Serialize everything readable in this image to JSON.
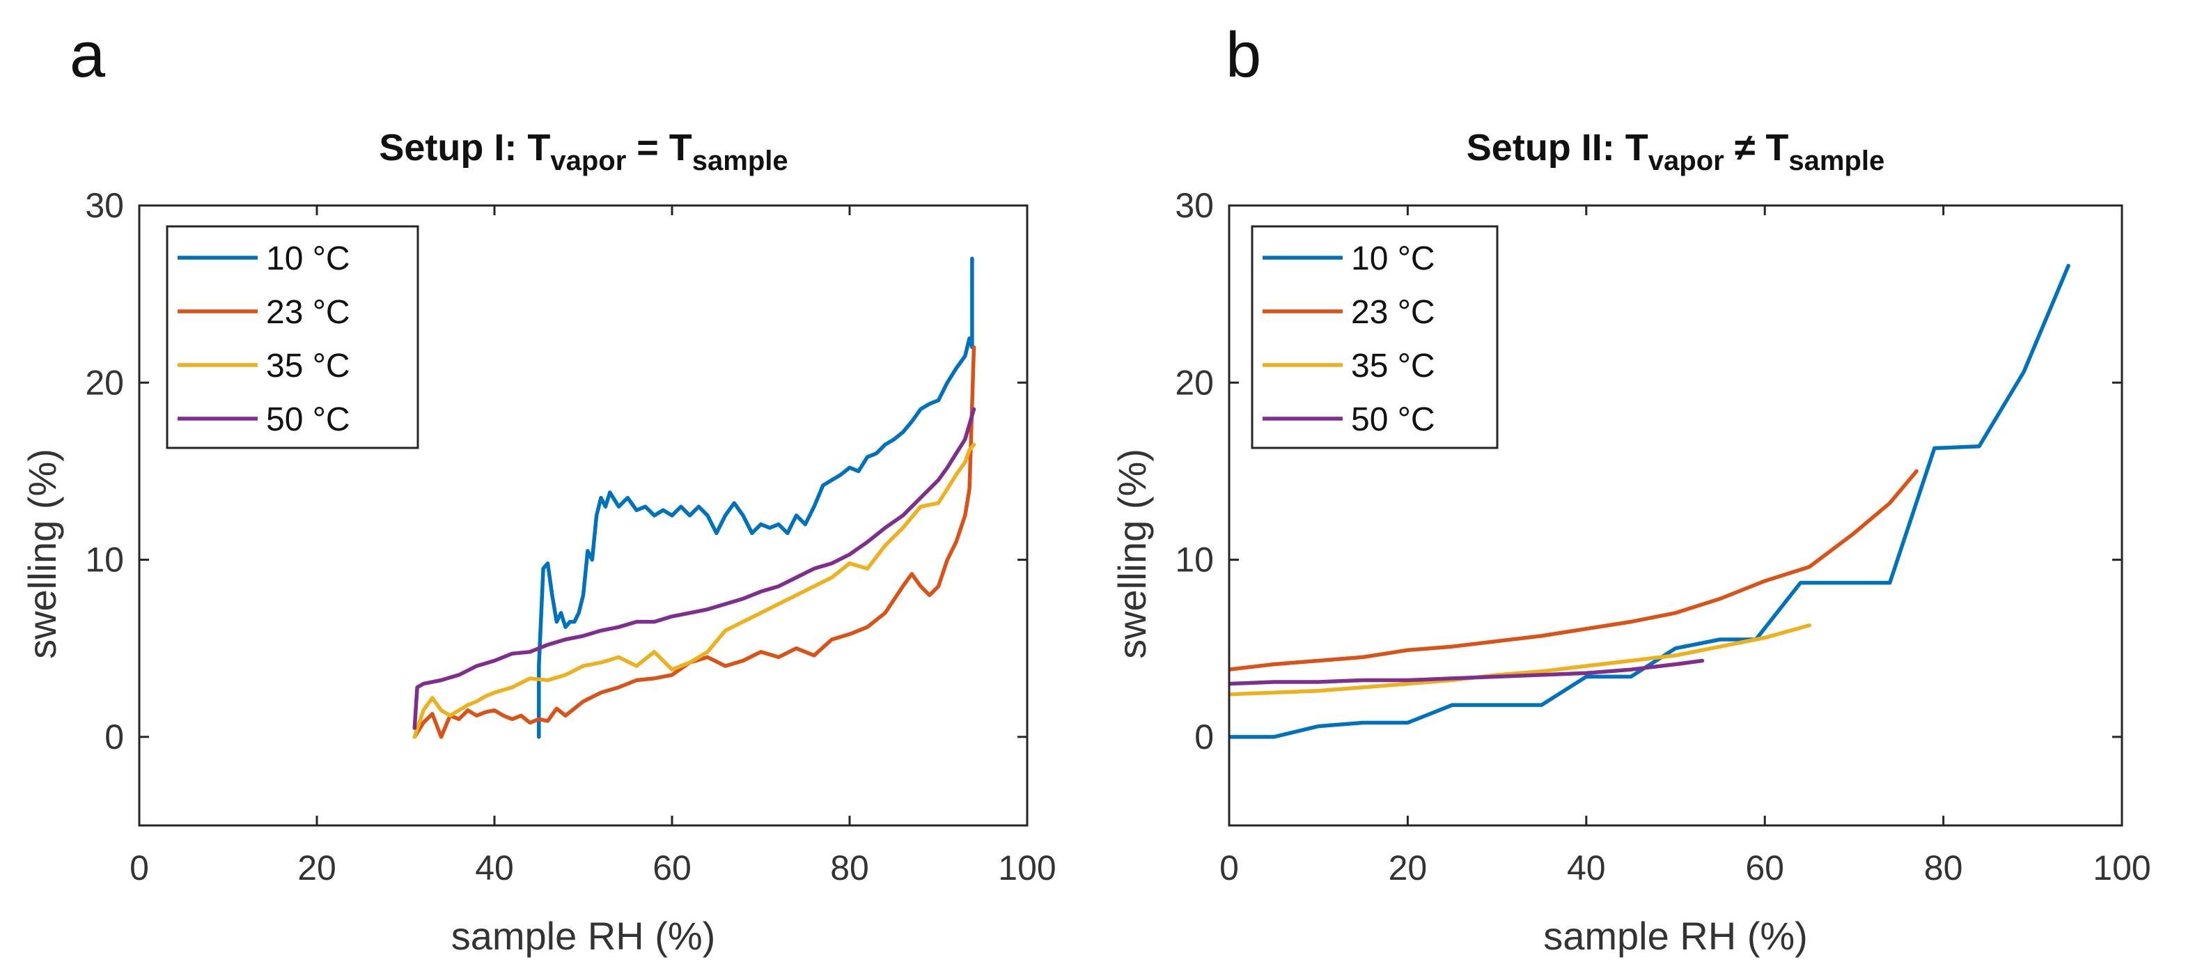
{
  "chart_data": [
    {
      "type": "line",
      "panel_label": "a",
      "title": {
        "main": "Setup I: T",
        "sub1": "vapor",
        "mid": " = T",
        "sub2": "sample"
      },
      "xlabel": "sample RH (%)",
      "ylabel": "swelling (%)",
      "xlim": [
        0,
        100
      ],
      "ylim": [
        -5,
        30
      ],
      "xticks": [
        0,
        20,
        40,
        60,
        80,
        100
      ],
      "yticks": [
        0,
        10,
        20,
        30
      ],
      "legend": "top-left",
      "series": [
        {
          "name": "10 °C",
          "color": "#0072BD",
          "x": [
            45,
            45,
            45.5,
            46,
            46.5,
            47,
            47.5,
            48,
            48.5,
            49,
            49.5,
            50,
            50.5,
            51,
            51.5,
            52,
            52.5,
            53,
            54,
            55,
            56,
            57,
            58,
            59,
            60,
            61,
            62,
            63,
            64,
            65,
            66,
            67,
            68,
            69,
            70,
            71,
            72,
            73,
            74,
            75,
            76,
            77,
            78,
            79,
            80,
            81,
            82,
            83,
            84,
            85,
            86,
            87,
            88,
            89,
            90,
            91,
            92,
            93,
            93.5,
            93.8,
            93.8
          ],
          "y": [
            0,
            4,
            9.5,
            9.8,
            8,
            6.5,
            7,
            6.2,
            6.5,
            6.5,
            7,
            8,
            10.5,
            10,
            12.5,
            13.5,
            13,
            13.8,
            13,
            13.5,
            12.8,
            13,
            12.5,
            12.8,
            12.5,
            13,
            12.5,
            13,
            12.5,
            11.5,
            12.5,
            13.2,
            12.5,
            11.5,
            12,
            11.8,
            12,
            11.5,
            12.5,
            12,
            13,
            14.2,
            14.5,
            14.8,
            15.2,
            15,
            15.8,
            16,
            16.5,
            16.8,
            17.2,
            17.8,
            18.5,
            18.8,
            19,
            20,
            20.8,
            21.5,
            22.5,
            22,
            27
          ]
        },
        {
          "name": "23 °C",
          "color": "#D95319",
          "x": [
            31,
            32,
            33,
            34,
            35,
            36,
            37,
            38,
            39,
            40,
            41,
            42,
            43,
            44,
            45,
            46,
            47,
            48,
            50,
            52,
            54,
            56,
            58,
            60,
            62,
            64,
            66,
            68,
            70,
            72,
            74,
            76,
            78,
            80,
            82,
            84,
            86,
            87,
            88,
            89,
            90,
            91,
            92,
            93,
            93.5,
            94
          ],
          "y": [
            0,
            0.8,
            1.3,
            0,
            1.2,
            1,
            1.5,
            1.2,
            1.4,
            1.5,
            1.2,
            1,
            1.2,
            0.8,
            1,
            0.9,
            1.6,
            1.2,
            2,
            2.5,
            2.8,
            3.2,
            3.3,
            3.5,
            4.2,
            4.5,
            4,
            4.3,
            4.8,
            4.5,
            5,
            4.6,
            5.5,
            5.8,
            6.2,
            7,
            8.5,
            9.2,
            8.5,
            8,
            8.5,
            10,
            11,
            12.5,
            14,
            22
          ]
        },
        {
          "name": "35 °C",
          "color": "#EDB120",
          "x": [
            31,
            32,
            33,
            34,
            35,
            36,
            37,
            38,
            39,
            40,
            42,
            44,
            46,
            48,
            50,
            52,
            54,
            56,
            58,
            60,
            62,
            64,
            66,
            68,
            70,
            72,
            74,
            76,
            78,
            80,
            82,
            84,
            86,
            88,
            90,
            91,
            92,
            93,
            93.5,
            94
          ],
          "y": [
            0,
            1.5,
            2.2,
            1.5,
            1.2,
            1.5,
            1.8,
            2,
            2.3,
            2.5,
            2.8,
            3.3,
            3.2,
            3.5,
            4,
            4.2,
            4.5,
            4,
            4.8,
            3.8,
            4.2,
            4.8,
            6,
            6.5,
            7,
            7.5,
            8,
            8.5,
            9,
            9.8,
            9.5,
            10.8,
            11.8,
            13,
            13.2,
            14,
            14.8,
            15.5,
            16.2,
            16.5
          ]
        },
        {
          "name": "50 °C",
          "color": "#7E2F8E",
          "x": [
            31,
            31.3,
            32,
            34,
            36,
            38,
            40,
            42,
            44,
            46,
            48,
            50,
            52,
            54,
            56,
            58,
            60,
            62,
            64,
            66,
            68,
            70,
            72,
            74,
            76,
            78,
            80,
            82,
            84,
            86,
            88,
            90,
            91,
            92,
            93,
            94
          ],
          "y": [
            0.5,
            2.8,
            3,
            3.2,
            3.5,
            4,
            4.3,
            4.7,
            4.8,
            5.2,
            5.5,
            5.7,
            6,
            6.2,
            6.5,
            6.5,
            6.8,
            7,
            7.2,
            7.5,
            7.8,
            8.2,
            8.5,
            9,
            9.5,
            9.8,
            10.3,
            11,
            11.8,
            12.5,
            13.5,
            14.5,
            15.2,
            16,
            16.8,
            18.5
          ]
        }
      ]
    },
    {
      "type": "line",
      "panel_label": "b",
      "title": {
        "main": "Setup II:  T",
        "sub1": "vapor",
        "mid": " ≠ T",
        "sub2": "sample"
      },
      "xlabel": "sample RH (%)",
      "ylabel": "swelling (%)",
      "xlim": [
        0,
        100
      ],
      "ylim": [
        -5,
        30
      ],
      "xticks": [
        0,
        20,
        40,
        60,
        80,
        100
      ],
      "yticks": [
        0,
        10,
        20,
        30
      ],
      "legend": "top-left",
      "series": [
        {
          "name": "10 °C",
          "color": "#0072BD",
          "x": [
            0,
            5,
            10,
            15,
            20,
            25,
            30,
            35,
            40,
            45,
            50,
            55,
            59,
            64,
            69,
            74,
            79,
            84,
            89,
            94
          ],
          "y": [
            0,
            0,
            0.6,
            0.8,
            0.8,
            1.8,
            1.8,
            1.8,
            3.4,
            3.4,
            5,
            5.5,
            5.5,
            8.7,
            8.7,
            8.7,
            16.3,
            16.4,
            20.6,
            26.6
          ]
        },
        {
          "name": "23 °C",
          "color": "#D95319",
          "x": [
            0,
            5,
            10,
            15,
            20,
            25,
            30,
            35,
            40,
            45,
            50,
            55,
            60,
            65,
            70,
            74,
            77
          ],
          "y": [
            3.8,
            4.1,
            4.3,
            4.5,
            4.9,
            5.1,
            5.4,
            5.7,
            6.1,
            6.5,
            7,
            7.8,
            8.8,
            9.6,
            11.5,
            13.2,
            15
          ]
        },
        {
          "name": "35 °C",
          "color": "#EDB120",
          "x": [
            0,
            5,
            10,
            15,
            20,
            25,
            30,
            35,
            40,
            45,
            50,
            55,
            60,
            65
          ],
          "y": [
            2.4,
            2.5,
            2.6,
            2.8,
            3,
            3.2,
            3.5,
            3.7,
            4,
            4.3,
            4.6,
            5.1,
            5.6,
            6.3
          ]
        },
        {
          "name": "50 °C",
          "color": "#7E2F8E",
          "x": [
            0,
            5,
            10,
            15,
            20,
            25,
            30,
            35,
            40,
            45,
            50,
            53
          ],
          "y": [
            3,
            3.1,
            3.1,
            3.2,
            3.2,
            3.3,
            3.4,
            3.5,
            3.6,
            3.8,
            4.1,
            4.3
          ]
        }
      ]
    }
  ]
}
